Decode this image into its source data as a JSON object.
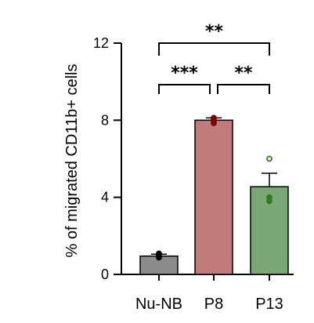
{
  "chart_data": {
    "type": "bar",
    "ylabel": "% of migrated CD11b+ cells",
    "xlabel": "",
    "title": "",
    "ylim": [
      0,
      12
    ],
    "yticks": [
      0,
      4,
      8,
      12
    ],
    "categories": [
      "Nu-NB",
      "P8",
      "P13"
    ],
    "values": [
      0.95,
      8.0,
      4.55
    ],
    "errors": [
      0.1,
      0.12,
      0.7
    ],
    "colors": [
      "#8c8c8c",
      "#c17b7b",
      "#7aa874"
    ],
    "point_colors": [
      "#000000",
      "#7a0000",
      "#2e7d1e"
    ],
    "points": [
      [
        0.88,
        1.0,
        1.08
      ],
      [
        7.85,
        8.0,
        8.12
      ],
      [
        3.8,
        4.0,
        6.0
      ]
    ],
    "significance": [
      {
        "from": "Nu-NB",
        "to": "P8",
        "label": "***"
      },
      {
        "from": "P8",
        "to": "P13",
        "label": "**"
      },
      {
        "from": "Nu-NB",
        "to": "P13",
        "label": "**"
      }
    ],
    "grid": false,
    "legend": "none"
  }
}
